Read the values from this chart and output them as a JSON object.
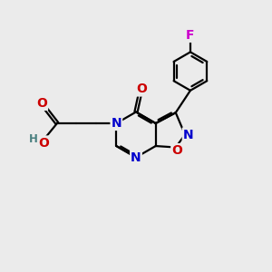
{
  "bg_color": "#ebebeb",
  "bond_color": "#000000",
  "bond_width": 1.6,
  "atom_colors": {
    "N": "#0000cc",
    "O": "#cc0000",
    "F": "#cc00cc",
    "H": "#4a8080",
    "C": "#000000"
  },
  "font_size_atom": 10,
  "font_size_small": 8.5
}
